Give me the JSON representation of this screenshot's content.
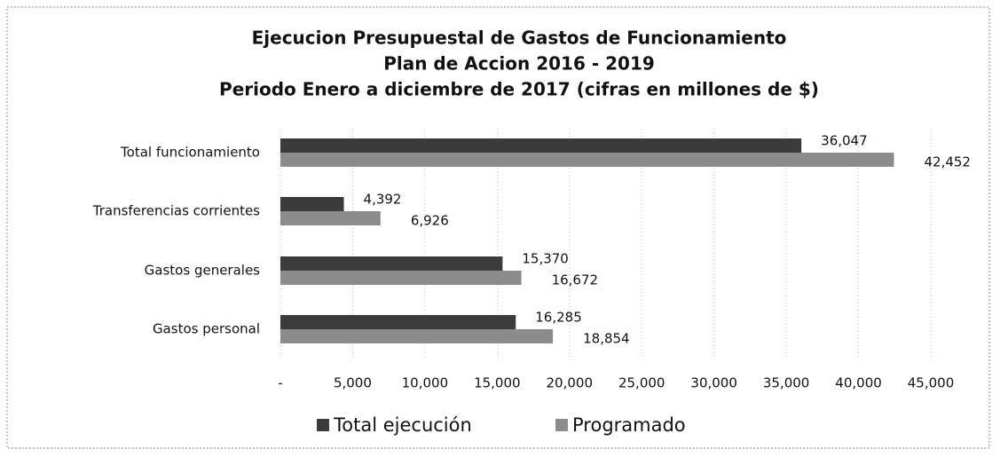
{
  "chart_data": {
    "type": "bar",
    "orientation": "horizontal",
    "title_lines": [
      "Ejecucion Presupuestal de Gastos de Funcionamiento",
      "Plan de Accion 2016 - 2019",
      "Periodo Enero a diciembre de 2017 (cifras en millones de $)"
    ],
    "categories": [
      "Total funcionamiento",
      "Transferencias corrientes",
      "Gastos generales",
      "Gastos personal"
    ],
    "series": [
      {
        "name": "Total ejecución",
        "color": "#3b3b3b",
        "values": [
          36047,
          4392,
          15370,
          16285
        ],
        "value_labels": [
          "36,047",
          "4,392",
          "15,370",
          "16,285"
        ]
      },
      {
        "name": "Programado",
        "color": "#8c8c8c",
        "values": [
          42452,
          6926,
          16672,
          18854
        ],
        "value_labels": [
          "42,452",
          "6,926",
          "16,672",
          "18,854"
        ]
      }
    ],
    "xlim": [
      0,
      45000
    ],
    "xticks": [
      {
        "value": 0,
        "label": "-"
      },
      {
        "value": 5000,
        "label": "5,000"
      },
      {
        "value": 10000,
        "label": "10,000"
      },
      {
        "value": 15000,
        "label": "15,000"
      },
      {
        "value": 20000,
        "label": "20,000"
      },
      {
        "value": 25000,
        "label": "25,000"
      },
      {
        "value": 30000,
        "label": "30,000"
      },
      {
        "value": 35000,
        "label": "35,000"
      },
      {
        "value": 40000,
        "label": "40,000"
      },
      {
        "value": 45000,
        "label": "45,000"
      }
    ],
    "grid": true,
    "legend": "bottom"
  }
}
